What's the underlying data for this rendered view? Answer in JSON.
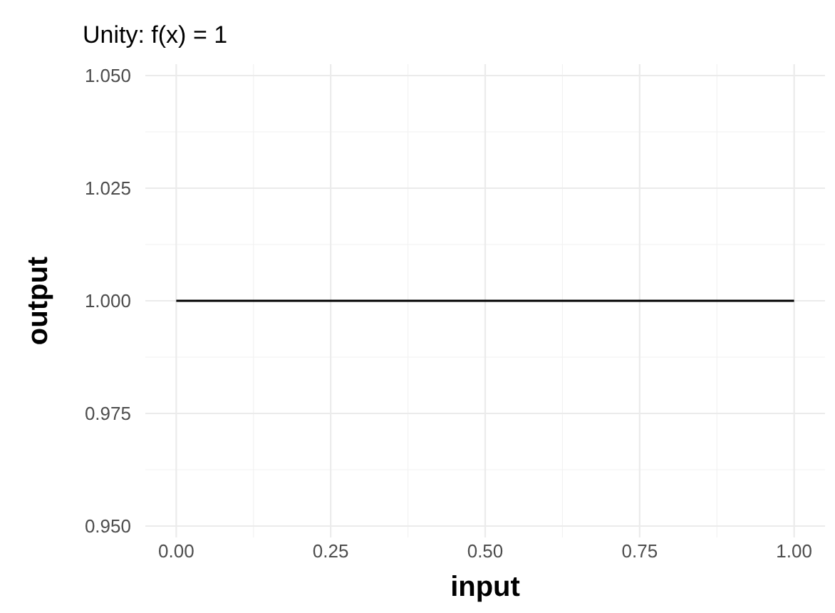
{
  "chart_data": {
    "type": "line",
    "title": "Unity: f(x) = 1",
    "xlabel": "input",
    "ylabel": "output",
    "x": [
      0,
      1
    ],
    "series": [
      {
        "color": "#000000",
        "values": [
          1,
          1
        ]
      }
    ],
    "xlim": [
      -0.05,
      1.05
    ],
    "ylim": [
      0.95,
      1.05
    ],
    "xticks": [
      {
        "value": 0,
        "label": "0.00"
      },
      {
        "value": 0.25,
        "label": "0.25"
      },
      {
        "value": 0.5,
        "label": "0.50"
      },
      {
        "value": 0.75,
        "label": "0.75"
      },
      {
        "value": 1,
        "label": "1.00"
      }
    ],
    "yticks": [
      {
        "value": 0.95,
        "label": "0.950"
      },
      {
        "value": 0.975,
        "label": "0.975"
      },
      {
        "value": 1,
        "label": "1.000"
      },
      {
        "value": 1.025,
        "label": "1.025"
      },
      {
        "value": 1.05,
        "label": "1.050"
      }
    ],
    "grid": true,
    "line_style": "solid",
    "marker": "none"
  }
}
